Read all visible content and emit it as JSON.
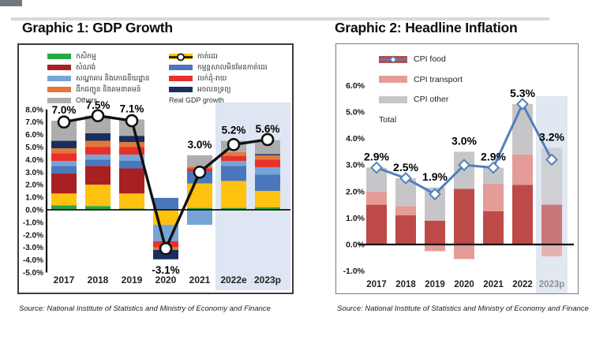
{
  "page": {
    "title_left": "Graphic 1: GDP Growth",
    "title_right": "Graphic 2: Headline Inflation",
    "source_left": "Source: National Institute of Statistics and Ministry of Economy and Finance",
    "source_right": "Source: National Institute of Statistics and Ministry of Economy and Finance"
  },
  "chart_data": [
    {
      "id": "gdp",
      "type": "bar",
      "stacked": true,
      "title": "Graphic 1: GDP Growth",
      "categories": [
        "2017",
        "2018",
        "2019",
        "2020",
        "2021",
        "2022e",
        "2023p"
      ],
      "ylim": [
        -5,
        8
      ],
      "ytick_step": 1,
      "ytick_labels": [
        "8.0%",
        "7.0%",
        "6.0%",
        "5.0%",
        "4.0%",
        "3.0%",
        "2.0%",
        "1.0%",
        "0.0%",
        "-1.0%",
        "-2.0%",
        "-3.0%",
        "-4.0%",
        "-5.0%"
      ],
      "grid": false,
      "legend_position": "top-inside-two-columns",
      "highlight_categories": [
        "2022e",
        "2023p"
      ],
      "highlight_color": "#DDE6F2",
      "series": [
        {
          "name": "កសិកម្ម",
          "color": "#27A844",
          "values": [
            0.35,
            0.3,
            0.1,
            0,
            0.15,
            0.15,
            0.2
          ]
        },
        {
          "name": "កាត់ដេរ",
          "color": "#FFC20E",
          "values": [
            0.95,
            1.7,
            1.2,
            -1.2,
            1.95,
            2.15,
            1.3
          ]
        },
        {
          "name": "សំណង់",
          "color": "#A82022",
          "values": [
            1.6,
            1.5,
            2.0,
            0,
            0,
            0,
            0
          ]
        },
        {
          "name": "កម្មន្តសាលមិនមែនកាត់ដេរ",
          "color": "#4A77BC",
          "values": [
            0.6,
            0.5,
            0.6,
            0.95,
            0.95,
            1.2,
            1.3
          ]
        },
        {
          "name": "សណ្ឋាគារ និងភោជនីយដ្ឋាន",
          "color": "#77A4D7",
          "values": [
            0.4,
            0.4,
            0.5,
            -1.3,
            -1.2,
            0.4,
            0.6
          ]
        },
        {
          "name": "លក់ដុំ-រាយ",
          "color": "#E8312A",
          "values": [
            0.6,
            0.6,
            0.6,
            -0.5,
            0.25,
            0.4,
            0.6
          ]
        },
        {
          "name": "ដឹកជញ្ជូន និងគមនាគមន៍",
          "color": "#E2793B",
          "values": [
            0.4,
            0.5,
            0.4,
            -0.2,
            0.15,
            0.3,
            0.35
          ]
        },
        {
          "name": "អចលនទ្រព្យ",
          "color": "#1A2F5E",
          "values": [
            0.6,
            0.6,
            0.5,
            -0.75,
            0,
            0,
            0.1
          ]
        },
        {
          "name": "Others",
          "color": "#ADADAD",
          "values": [
            1.6,
            1.4,
            1.3,
            0,
            0.9,
            0.9,
            1.1
          ]
        }
      ],
      "line": {
        "name": "Real GDP growth",
        "color": "#111111",
        "marker": "circle",
        "values": [
          7.0,
          7.5,
          7.1,
          -3.1,
          3.0,
          5.2,
          5.6
        ],
        "labels": [
          "7.0%",
          "7.5%",
          "7.1%",
          "-3.1%",
          "3.0%",
          "5.2%",
          "5.6%"
        ],
        "label_side": [
          "above",
          "above",
          "above",
          "below",
          "above",
          "above",
          "above"
        ]
      },
      "legend_columns": {
        "col1": [
          0,
          2,
          4,
          6,
          8
        ],
        "col2": [
          1,
          3,
          5,
          7,
          "line"
        ]
      }
    },
    {
      "id": "cpi",
      "type": "bar",
      "stacked": true,
      "title": "Graphic 2: Headline Inflation",
      "categories": [
        "2017",
        "2018",
        "2019",
        "2020",
        "2021",
        "2022",
        "2023p"
      ],
      "ylim": [
        -1,
        6
      ],
      "ytick_step": 1,
      "ytick_labels": [
        "6.0%",
        "5.0%",
        "4.0%",
        "3.0%",
        "2.0%",
        "1.0%",
        "0.0%",
        "-1.0%"
      ],
      "grid": false,
      "legend_position": "top-left-inside",
      "highlight_categories": [
        "2023p"
      ],
      "highlight_color": "#E2E8F2",
      "faded_categories": [
        "2023p"
      ],
      "xlabel_muted": [
        "2023p"
      ],
      "series": [
        {
          "name": "CPI food",
          "color": "#BE4A47",
          "values": [
            1.5,
            1.1,
            0.9,
            2.1,
            1.25,
            2.25,
            1.5
          ]
        },
        {
          "name": "CPI transport",
          "color": "#E49C98",
          "values": [
            0.5,
            0.35,
            -0.25,
            -0.55,
            1.05,
            1.15,
            -0.45
          ]
        },
        {
          "name": "CPI other",
          "color": "#C6C6C8",
          "values": [
            0.9,
            1.05,
            1.25,
            1.4,
            0.6,
            1.9,
            2.15
          ]
        }
      ],
      "line": {
        "name": "Total",
        "color": "#4F81BD",
        "marker": "diamond",
        "values": [
          2.9,
          2.5,
          1.9,
          3.0,
          2.9,
          5.3,
          3.2
        ],
        "labels": [
          "2.9%",
          "2.5%",
          "1.9%",
          "3.0%",
          "2.9%",
          "5.3%",
          "3.2%"
        ],
        "label_side": [
          "above",
          "above",
          "above",
          "above",
          "above",
          "above",
          "above"
        ]
      },
      "legend_columns": {
        "col1": [
          0,
          1,
          2,
          "line"
        ]
      }
    }
  ]
}
